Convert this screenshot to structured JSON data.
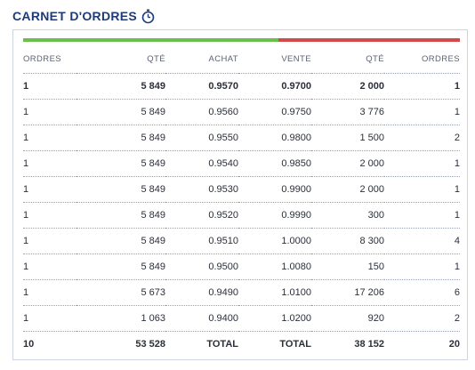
{
  "header": {
    "title": "CARNET D'ORDRES",
    "icon": "stopwatch-icon"
  },
  "colors": {
    "title": "#1f3a78",
    "buy_bar": "#6cbe4f",
    "sell_bar": "#d24a4a"
  },
  "balance_bar": {
    "buy_fraction": 0.585
  },
  "columns": [
    "ORDRES",
    "QTÉ",
    "ACHAT",
    "VENTE",
    "QTÉ",
    "ORDRES"
  ],
  "rows": [
    [
      "1",
      "5 849",
      "0.9570",
      "0.9700",
      "2 000",
      "1"
    ],
    [
      "1",
      "5 849",
      "0.9560",
      "0.9750",
      "3 776",
      "1"
    ],
    [
      "1",
      "5 849",
      "0.9550",
      "0.9800",
      "1 500",
      "2"
    ],
    [
      "1",
      "5 849",
      "0.9540",
      "0.9850",
      "2 000",
      "1"
    ],
    [
      "1",
      "5 849",
      "0.9530",
      "0.9900",
      "2 000",
      "1"
    ],
    [
      "1",
      "5 849",
      "0.9520",
      "0.9990",
      "300",
      "1"
    ],
    [
      "1",
      "5 849",
      "0.9510",
      "1.0000",
      "8 300",
      "4"
    ],
    [
      "1",
      "5 849",
      "0.9500",
      "1.0080",
      "150",
      "1"
    ],
    [
      "1",
      "5 673",
      "0.9490",
      "1.0100",
      "17 206",
      "6"
    ],
    [
      "1",
      "1 063",
      "0.9400",
      "1.0200",
      "920",
      "2"
    ]
  ],
  "total": [
    "10",
    "53 528",
    "TOTAL",
    "TOTAL",
    "38 152",
    "20"
  ]
}
